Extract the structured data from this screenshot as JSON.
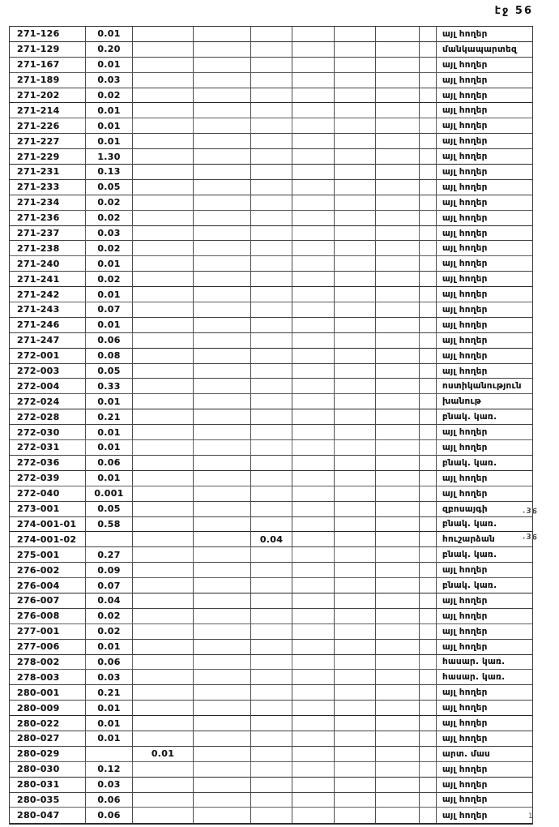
{
  "page": {
    "header": "էջ 56",
    "bottom_mark": "1"
  },
  "colors": {
    "paper": "#ffffff",
    "ink": "#161616",
    "rule": "#424242"
  },
  "table": {
    "num_columns": 10,
    "rows": [
      {
        "code": "271-126",
        "value": "0.01",
        "value_col": 2,
        "label": "այլ հողեր"
      },
      {
        "code": "271-129",
        "value": "0.20",
        "value_col": 2,
        "label": "մանկապարտեզ"
      },
      {
        "code": "271-167",
        "value": "0.01",
        "value_col": 2,
        "label": "այլ հողեր"
      },
      {
        "code": "271-189",
        "value": "0.03",
        "value_col": 2,
        "label": "այլ հողեր"
      },
      {
        "code": "271-202",
        "value": "0.02",
        "value_col": 2,
        "label": "այլ հողեր"
      },
      {
        "code": "271-214",
        "value": "0.01",
        "value_col": 2,
        "label": "այլ հողեր"
      },
      {
        "code": "271-226",
        "value": "0.01",
        "value_col": 2,
        "label": "այլ հողեր"
      },
      {
        "code": "271-227",
        "value": "0.01",
        "value_col": 2,
        "label": "այլ հողեր"
      },
      {
        "code": "271-229",
        "value": "1.30",
        "value_col": 2,
        "label": "այլ հողեր"
      },
      {
        "code": "271-231",
        "value": "0.13",
        "value_col": 2,
        "label": "այլ հողեր"
      },
      {
        "code": "271-233",
        "value": "0.05",
        "value_col": 2,
        "label": "այլ հողեր"
      },
      {
        "code": "271-234",
        "value": "0.02",
        "value_col": 2,
        "label": "այլ հողեր"
      },
      {
        "code": "271-236",
        "value": "0.02",
        "value_col": 2,
        "label": "այլ հողեր"
      },
      {
        "code": "271-237",
        "value": "0.03",
        "value_col": 2,
        "label": "այլ հողեր"
      },
      {
        "code": "271-238",
        "value": "0.02",
        "value_col": 2,
        "label": "այլ հողեր"
      },
      {
        "code": "271-240",
        "value": "0.01",
        "value_col": 2,
        "label": "այլ հողեր"
      },
      {
        "code": "271-241",
        "value": "0.02",
        "value_col": 2,
        "label": "այլ հողեր"
      },
      {
        "code": "271-242",
        "value": "0.01",
        "value_col": 2,
        "label": "այլ հողեր"
      },
      {
        "code": "271-243",
        "value": "0.07",
        "value_col": 2,
        "label": "այլ հողեր"
      },
      {
        "code": "271-246",
        "value": "0.01",
        "value_col": 2,
        "label": "այլ հողեր"
      },
      {
        "code": "271-247",
        "value": "0.06",
        "value_col": 2,
        "label": "այլ հողեր"
      },
      {
        "code": "272-001",
        "value": "0.08",
        "value_col": 2,
        "label": "այլ հողեր"
      },
      {
        "code": "272-003",
        "value": "0.05",
        "value_col": 2,
        "label": "այլ հողեր"
      },
      {
        "code": "272-004",
        "value": "0.33",
        "value_col": 2,
        "label": "ոստիկանություն"
      },
      {
        "code": "272-024",
        "value": "0.01",
        "value_col": 2,
        "label": "խանութ"
      },
      {
        "code": "272-028",
        "value": "0.21",
        "value_col": 2,
        "label": "բնակ. կառ."
      },
      {
        "code": "272-030",
        "value": "0.01",
        "value_col": 2,
        "label": "այլ հողեր"
      },
      {
        "code": "272-031",
        "value": "0.01",
        "value_col": 2,
        "label": "այլ հողեր"
      },
      {
        "code": "272-036",
        "value": "0.06",
        "value_col": 2,
        "label": "բնակ. կառ."
      },
      {
        "code": "272-039",
        "value": "0.01",
        "value_col": 2,
        "label": "այլ հողեր"
      },
      {
        "code": "272-040",
        "value": "0.001",
        "value_col": 2,
        "label": "այլ հողեր"
      },
      {
        "code": "273-001",
        "value": "0.05",
        "value_col": 2,
        "label": "զբոսայգի"
      },
      {
        "code": "274-001-01",
        "value": "0.58",
        "value_col": 2,
        "label": "բնակ. կառ."
      },
      {
        "code": "274-001-02",
        "value": "0.04",
        "value_col": 5,
        "label": "հուշարձան"
      },
      {
        "code": "275-001",
        "value": "0.27",
        "value_col": 2,
        "label": "բնակ. կառ."
      },
      {
        "code": "276-002",
        "value": "0.09",
        "value_col": 2,
        "label": "այլ հողեր"
      },
      {
        "code": "276-004",
        "value": "0.07",
        "value_col": 2,
        "label": "բնակ. կառ."
      },
      {
        "code": "276-007",
        "value": "0.04",
        "value_col": 2,
        "label": "այլ հողեր"
      },
      {
        "code": "276-008",
        "value": "0.02",
        "value_col": 2,
        "label": "այլ հողեր"
      },
      {
        "code": "277-001",
        "value": "0.02",
        "value_col": 2,
        "label": "այլ հողեր"
      },
      {
        "code": "277-006",
        "value": "0.01",
        "value_col": 2,
        "label": "այլ հողեր"
      },
      {
        "code": "278-002",
        "value": "0.06",
        "value_col": 2,
        "label": "հասար. կառ."
      },
      {
        "code": "278-003",
        "value": "0.03",
        "value_col": 2,
        "label": "հասար. կառ."
      },
      {
        "code": "280-001",
        "value": "0.21",
        "value_col": 2,
        "label": "այլ հողեր"
      },
      {
        "code": "280-009",
        "value": "0.01",
        "value_col": 2,
        "label": "այլ հողեր"
      },
      {
        "code": "280-022",
        "value": "0.01",
        "value_col": 2,
        "label": "այլ հողեր"
      },
      {
        "code": "280-027",
        "value": "0.01",
        "value_col": 2,
        "label": "այլ հողեր"
      },
      {
        "code": "280-029",
        "value": "0.01",
        "value_col": 3,
        "label": "արտ. մաս"
      },
      {
        "code": "280-030",
        "value": "0.12",
        "value_col": 2,
        "label": "այլ հողեր"
      },
      {
        "code": "280-031",
        "value": "0.03",
        "value_col": 2,
        "label": "այլ հողեր"
      },
      {
        "code": "280-035",
        "value": "0.06",
        "value_col": 2,
        "label": "այլ հողեր"
      },
      {
        "code": "280-047",
        "value": "0.06",
        "value_col": 2,
        "label": "այլ հողեր"
      }
    ]
  },
  "margin_notes": [
    {
      "text": ".36"
    },
    {
      "text": ".36"
    }
  ]
}
